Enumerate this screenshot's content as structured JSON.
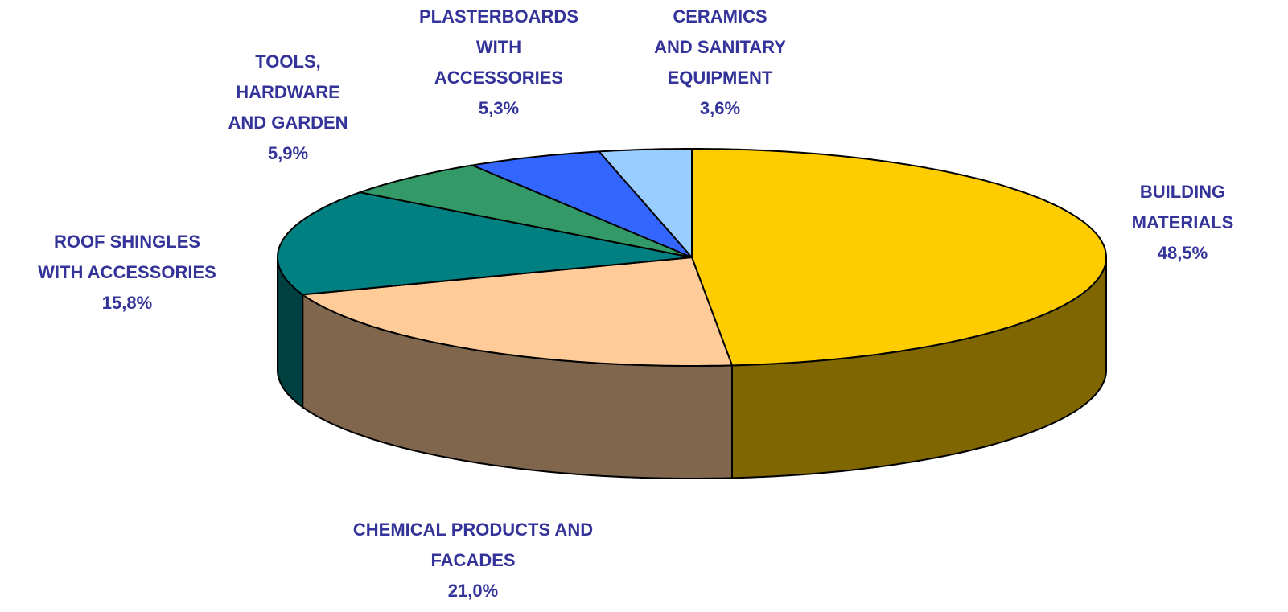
{
  "chart_data": {
    "type": "pie",
    "categories": [
      "BUILDING\nMATERIALS",
      "CHEMICAL PRODUCTS AND\nFACADES",
      "ROOF SHINGLES\nWITH ACCESSORIES",
      "TOOLS,\nHARDWARE\nAND GARDEN",
      "PLASTERBOARDS\nWITH\nACCESSORIES",
      "CERAMICS\nAND SANITARY\nEQUIPMENT"
    ],
    "values": [
      48.5,
      21.0,
      15.8,
      5.9,
      5.3,
      3.6
    ],
    "value_labels": [
      "48,5%",
      "21,0%",
      "15,8%",
      "5,9%",
      "5,3%",
      "3,6%"
    ],
    "colors": [
      "#ffcc00",
      "#ffcc99",
      "#008080",
      "#339966",
      "#3366ff",
      "#99ccff"
    ]
  }
}
